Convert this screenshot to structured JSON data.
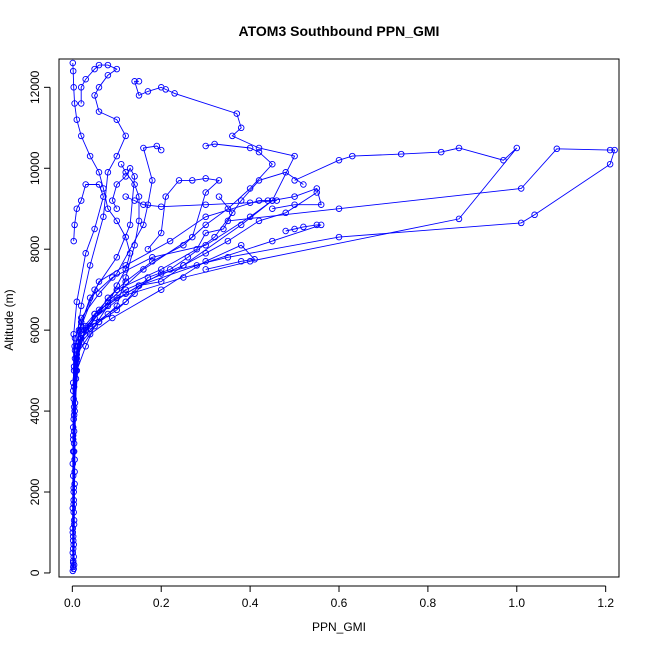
{
  "chart_data": {
    "type": "line",
    "title": "ATOM3 Southbound PPN_GMI",
    "xlabel": "PPN_GMI",
    "ylabel": "Altitude (m)",
    "xlim": [
      -0.03,
      1.23
    ],
    "ylim": [
      -100,
      12700
    ],
    "xticks": [
      0.0,
      0.2,
      0.4,
      0.6,
      0.8,
      1.0,
      1.2
    ],
    "xtick_labels": [
      "0.0",
      "0.2",
      "0.4",
      "0.6",
      "0.8",
      "1.0",
      "1.2"
    ],
    "yticks": [
      0,
      2000,
      4000,
      6000,
      8000,
      10000,
      12000
    ],
    "ytick_labels": [
      "0",
      "2000",
      "4000",
      "6000",
      "8000",
      "10000",
      "12000"
    ],
    "grid": false,
    "legend": "none",
    "marker": "open-circle",
    "color": "#0000ff",
    "series": [
      {
        "points": [
          [
            0.003,
            100
          ],
          [
            0.002,
            600
          ],
          [
            0.004,
            1200
          ],
          [
            0.003,
            2000
          ],
          [
            0.005,
            2800
          ],
          [
            0.004,
            3500
          ],
          [
            0.006,
            4200
          ],
          [
            0.008,
            5000
          ],
          [
            0.02,
            5800
          ],
          [
            0.05,
            6300
          ],
          [
            0.12,
            6900
          ],
          [
            0.2,
            7400
          ],
          [
            0.35,
            7800
          ],
          [
            0.6,
            8300
          ],
          [
            1.01,
            8650
          ],
          [
            1.04,
            8850
          ],
          [
            1.21,
            10100
          ],
          [
            1.22,
            10450
          ],
          [
            1.21,
            10450
          ],
          [
            1.09,
            10480
          ],
          [
            1.01,
            9500
          ],
          [
            0.6,
            9000
          ],
          [
            0.35,
            8700
          ]
        ]
      },
      {
        "points": [
          [
            0.002,
            300
          ],
          [
            0.003,
            1500
          ],
          [
            0.004,
            3000
          ],
          [
            0.01,
            5200
          ],
          [
            0.03,
            6100
          ],
          [
            0.1,
            6800
          ],
          [
            0.25,
            7300
          ],
          [
            0.4,
            7700
          ],
          [
            0.87,
            8750
          ],
          [
            1.0,
            10500
          ],
          [
            0.97,
            10200
          ],
          [
            0.87,
            10500
          ],
          [
            0.83,
            10400
          ],
          [
            0.74,
            10350
          ],
          [
            0.63,
            10300
          ],
          [
            0.6,
            10200
          ],
          [
            0.5,
            9700
          ]
        ]
      },
      {
        "points": [
          [
            0.004,
            200
          ],
          [
            0.005,
            2500
          ],
          [
            0.008,
            4800
          ],
          [
            0.02,
            5900
          ],
          [
            0.06,
            6500
          ],
          [
            0.15,
            7100
          ],
          [
            0.28,
            7600
          ],
          [
            0.45,
            8200
          ],
          [
            0.56,
            8600
          ],
          [
            0.55,
            8600
          ],
          [
            0.52,
            8550
          ],
          [
            0.5,
            8500
          ],
          [
            0.48,
            8450
          ]
        ]
      },
      {
        "points": [
          [
            0.003,
            400
          ],
          [
            0.004,
            3200
          ],
          [
            0.01,
            5600
          ],
          [
            0.05,
            6400
          ],
          [
            0.12,
            7000
          ],
          [
            0.25,
            7600
          ],
          [
            0.38,
            8600
          ],
          [
            0.45,
            9200
          ],
          [
            0.5,
            10300
          ],
          [
            0.42,
            10500
          ],
          [
            0.36,
            10800
          ],
          [
            0.38,
            11000
          ],
          [
            0.37,
            11350
          ],
          [
            0.23,
            11850
          ],
          [
            0.21,
            11950
          ],
          [
            0.2,
            12000
          ],
          [
            0.17,
            11900
          ],
          [
            0.15,
            11800
          ],
          [
            0.14,
            12150
          ],
          [
            0.15,
            12150
          ]
        ]
      },
      {
        "points": [
          [
            0.002,
            800
          ],
          [
            0.003,
            3800
          ],
          [
            0.01,
            5300
          ],
          [
            0.03,
            6000
          ],
          [
            0.08,
            6700
          ],
          [
            0.16,
            7500
          ],
          [
            0.27,
            8300
          ],
          [
            0.3,
            9400
          ],
          [
            0.33,
            9700
          ],
          [
            0.3,
            9750
          ],
          [
            0.27,
            9700
          ],
          [
            0.24,
            9700
          ],
          [
            0.21,
            9300
          ],
          [
            0.2,
            8400
          ],
          [
            0.17,
            8000
          ]
        ]
      },
      {
        "points": [
          [
            0.001,
            1000
          ],
          [
            0.002,
            4500
          ],
          [
            0.006,
            5800
          ],
          [
            0.02,
            6300
          ],
          [
            0.06,
            6900
          ],
          [
            0.1,
            7400
          ],
          [
            0.16,
            8600
          ],
          [
            0.17,
            9100
          ],
          [
            0.18,
            9700
          ],
          [
            0.16,
            10500
          ],
          [
            0.19,
            10550
          ],
          [
            0.2,
            10450
          ]
        ]
      },
      {
        "points": [
          [
            0.003,
            1800
          ],
          [
            0.004,
            5000
          ],
          [
            0.02,
            6200
          ],
          [
            0.05,
            7000
          ],
          [
            0.1,
            7800
          ],
          [
            0.13,
            8600
          ],
          [
            0.14,
            9800
          ],
          [
            0.13,
            10000
          ],
          [
            0.12,
            9800
          ],
          [
            0.1,
            9600
          ],
          [
            0.09,
            9200
          ],
          [
            0.1,
            9000
          ]
        ]
      },
      {
        "points": [
          [
            0.005,
            2200
          ],
          [
            0.006,
            5500
          ],
          [
            0.02,
            6600
          ],
          [
            0.04,
            7600
          ],
          [
            0.07,
            8800
          ],
          [
            0.08,
            9900
          ],
          [
            0.1,
            10300
          ],
          [
            0.12,
            10800
          ],
          [
            0.1,
            11200
          ],
          [
            0.06,
            11400
          ],
          [
            0.05,
            11800
          ],
          [
            0.06,
            12000
          ],
          [
            0.08,
            12300
          ],
          [
            0.1,
            12450
          ],
          [
            0.08,
            12550
          ],
          [
            0.06,
            12550
          ],
          [
            0.05,
            12450
          ],
          [
            0.03,
            12200
          ],
          [
            0.02,
            12000
          ],
          [
            0.02,
            11600
          ]
        ]
      },
      {
        "points": [
          [
            0.002,
            3000
          ],
          [
            0.003,
            5900
          ],
          [
            0.01,
            6700
          ],
          [
            0.03,
            7900
          ],
          [
            0.05,
            8500
          ],
          [
            0.07,
            9300
          ],
          [
            0.06,
            9600
          ],
          [
            0.03,
            9600
          ],
          [
            0.02,
            9200
          ],
          [
            0.01,
            9000
          ],
          [
            0.005,
            8600
          ],
          [
            0.003,
            8200
          ]
        ]
      },
      {
        "points": [
          [
            0.004,
            1300
          ],
          [
            0.005,
            4000
          ],
          [
            0.02,
            6100
          ],
          [
            0.06,
            7200
          ],
          [
            0.12,
            7600
          ],
          [
            0.22,
            8200
          ],
          [
            0.3,
            8800
          ],
          [
            0.42,
            9200
          ],
          [
            0.44,
            9200
          ],
          [
            0.46,
            9200
          ],
          [
            0.4,
            9150
          ],
          [
            0.3,
            9100
          ],
          [
            0.2,
            9050
          ],
          [
            0.16,
            9100
          ],
          [
            0.14,
            9200
          ],
          [
            0.12,
            9300
          ]
        ]
      },
      {
        "points": [
          [
            0.003,
            700
          ],
          [
            0.004,
            4600
          ],
          [
            0.015,
            6000
          ],
          [
            0.04,
            6800
          ],
          [
            0.09,
            7300
          ],
          [
            0.18,
            7800
          ],
          [
            0.3,
            8100
          ],
          [
            0.4,
            8800
          ],
          [
            0.45,
            9200
          ],
          [
            0.5,
            9300
          ],
          [
            0.55,
            9500
          ],
          [
            0.56,
            9100
          ],
          [
            0.5,
            9100
          ],
          [
            0.45,
            9000
          ]
        ]
      },
      {
        "points": [
          [
            0.001,
            50
          ],
          [
            0.001,
            1600
          ],
          [
            0.002,
            3300
          ],
          [
            0.004,
            5100
          ],
          [
            0.02,
            5700
          ],
          [
            0.06,
            6200
          ],
          [
            0.1,
            6600
          ],
          [
            0.12,
            7300
          ],
          [
            0.14,
            8100
          ],
          [
            0.15,
            8700
          ],
          [
            0.15,
            9300
          ],
          [
            0.14,
            9600
          ],
          [
            0.12,
            9900
          ],
          [
            0.11,
            10100
          ]
        ]
      },
      {
        "points": [
          [
            0.002,
            150
          ],
          [
            0.002,
            2400
          ],
          [
            0.003,
            4300
          ],
          [
            0.01,
            5400
          ],
          [
            0.04,
            5900
          ],
          [
            0.09,
            6300
          ],
          [
            0.2,
            7000
          ],
          [
            0.3,
            7700
          ],
          [
            0.38,
            8100
          ],
          [
            0.41,
            7750
          ],
          [
            0.38,
            7700
          ],
          [
            0.3,
            7500
          ]
        ]
      },
      {
        "points": [
          [
            0.001,
            500
          ],
          [
            0.001,
            2700
          ],
          [
            0.002,
            4700
          ],
          [
            0.005,
            5600
          ],
          [
            0.02,
            6000
          ],
          [
            0.05,
            6400
          ],
          [
            0.1,
            7000
          ],
          [
            0.2,
            7500
          ],
          [
            0.28,
            8000
          ],
          [
            0.3,
            8400
          ],
          [
            0.34,
            8500
          ],
          [
            0.36,
            8900
          ],
          [
            0.33,
            9300
          ]
        ]
      },
      {
        "points": [
          [
            0.002,
            250
          ],
          [
            0.003,
            2100
          ],
          [
            0.004,
            3900
          ],
          [
            0.01,
            5000
          ],
          [
            0.03,
            5600
          ],
          [
            0.05,
            6100
          ],
          [
            0.08,
            6600
          ],
          [
            0.1,
            7100
          ],
          [
            0.12,
            7500
          ],
          [
            0.13,
            7900
          ],
          [
            0.12,
            8300
          ],
          [
            0.1,
            8700
          ],
          [
            0.08,
            9000
          ],
          [
            0.07,
            9500
          ],
          [
            0.06,
            9900
          ],
          [
            0.04,
            10300
          ],
          [
            0.02,
            10800
          ],
          [
            0.01,
            11200
          ],
          [
            0.005,
            11600
          ],
          [
            0.003,
            12000
          ],
          [
            0.002,
            12400
          ],
          [
            0.001,
            12600
          ]
        ]
      },
      {
        "points": [
          [
            0.001,
            1100
          ],
          [
            0.002,
            3600
          ],
          [
            0.01,
            5500
          ],
          [
            0.03,
            6000
          ],
          [
            0.08,
            6400
          ],
          [
            0.12,
            6700
          ],
          [
            0.15,
            7100
          ],
          [
            0.2,
            7200
          ],
          [
            0.25,
            7600
          ],
          [
            0.3,
            7900
          ],
          [
            0.35,
            8200
          ],
          [
            0.42,
            8700
          ],
          [
            0.48,
            8900
          ],
          [
            0.55,
            9400
          ]
        ]
      },
      {
        "points": [
          [
            0.002,
            900
          ],
          [
            0.002,
            3400
          ],
          [
            0.006,
            5300
          ],
          [
            0.02,
            5800
          ],
          [
            0.06,
            6200
          ],
          [
            0.1,
            6500
          ],
          [
            0.14,
            6900
          ],
          [
            0.17,
            7300
          ],
          [
            0.22,
            7500
          ],
          [
            0.26,
            7800
          ],
          [
            0.32,
            8300
          ],
          [
            0.38,
            9200
          ],
          [
            0.42,
            9700
          ],
          [
            0.48,
            9900
          ],
          [
            0.52,
            9600
          ]
        ]
      },
      {
        "points": [
          [
            0.003,
            1700
          ],
          [
            0.004,
            4100
          ],
          [
            0.015,
            5700
          ],
          [
            0.04,
            6100
          ],
          [
            0.08,
            6800
          ],
          [
            0.12,
            7200
          ],
          [
            0.18,
            7700
          ],
          [
            0.25,
            8100
          ],
          [
            0.3,
            8600
          ],
          [
            0.35,
            9000
          ],
          [
            0.4,
            9500
          ],
          [
            0.45,
            10100
          ],
          [
            0.42,
            10400
          ],
          [
            0.4,
            10500
          ],
          [
            0.32,
            10600
          ],
          [
            0.3,
            10550
          ]
        ]
      }
    ]
  }
}
